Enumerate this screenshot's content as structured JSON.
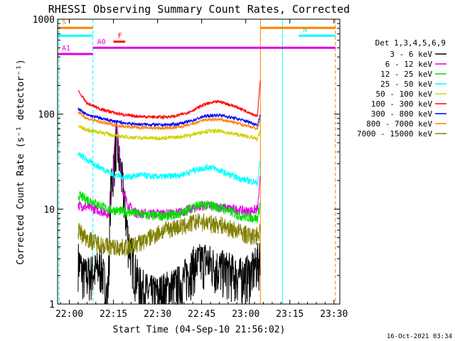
{
  "chart_data": {
    "type": "line",
    "title": "RHESSI Observing Summary Count Rates, Corrected",
    "xlabel": "Start Time (04-Sep-10 21:56:02)",
    "ylabel": "Corrected Count Rate (s⁻¹ detector⁻¹)",
    "y_scale": "log",
    "ylim": [
      1,
      1000
    ],
    "xlim_minutes_after_2156": [
      0,
      96
    ],
    "x_ticks": [
      {
        "label": "22:00",
        "t": 4
      },
      {
        "label": "22:15",
        "t": 19
      },
      {
        "label": "22:30",
        "t": 34
      },
      {
        "label": "22:45",
        "t": 49
      },
      {
        "label": "23:00",
        "t": 64
      },
      {
        "label": "23:15",
        "t": 79
      },
      {
        "label": "23:30",
        "t": 94
      }
    ],
    "y_ticks": [
      {
        "label": "1",
        "v": 1
      },
      {
        "label": "10",
        "v": 10
      },
      {
        "label": "100",
        "v": 100
      },
      {
        "label": "1000",
        "v": 1000
      }
    ],
    "legend_title": "Det 1,3,4,5,6,9",
    "legend_placement": "right",
    "series": [
      {
        "name": "3 - 6 keV",
        "color": "#000000",
        "x": [
          7,
          9,
          12,
          15,
          17,
          17.5,
          18,
          20,
          22,
          24,
          26,
          28,
          30,
          32,
          34,
          38,
          42,
          46,
          50,
          54,
          58,
          62,
          66,
          68.5,
          69
        ],
        "y": [
          3,
          2,
          2.2,
          2.5,
          1.2,
          3,
          15,
          55,
          20,
          5,
          2.5,
          1.6,
          1.4,
          1.3,
          1.3,
          1.5,
          1.7,
          2.6,
          3,
          2.5,
          2.3,
          2,
          2.2,
          3,
          4
        ]
      },
      {
        "name": "6 - 12 keV",
        "color": "#e000e0",
        "x": [
          7,
          10,
          13,
          15,
          17,
          18,
          19,
          20,
          21,
          22,
          24,
          27,
          30,
          35,
          40,
          45,
          50,
          55,
          60,
          65,
          68,
          69
        ],
        "y": [
          11,
          10.5,
          10,
          9.5,
          9,
          10,
          30,
          95,
          35,
          16,
          11,
          9,
          9,
          9,
          9,
          10,
          11,
          10.5,
          10,
          9.5,
          10,
          22
        ]
      },
      {
        "name": "12 - 25 keV",
        "color": "#00e000",
        "x": [
          7,
          12,
          17,
          22,
          27,
          32,
          37,
          42,
          47,
          52,
          57,
          62,
          68,
          69
        ],
        "y": [
          14,
          12,
          10,
          9.5,
          9,
          8.5,
          8.5,
          9,
          11,
          11,
          10,
          8.5,
          8,
          12
        ]
      },
      {
        "name": "25 - 50 keV",
        "color": "#00ffff",
        "x": [
          7,
          10,
          13,
          16,
          19,
          22,
          25,
          28,
          32,
          37,
          42,
          47,
          52,
          57,
          62,
          68,
          69
        ],
        "y": [
          38,
          33,
          29,
          26,
          23,
          22,
          22,
          23,
          22,
          22,
          23,
          26,
          28,
          24,
          21,
          19,
          35
        ]
      },
      {
        "name": "50 - 100 keV",
        "color": "#d0d000",
        "x": [
          7,
          10,
          15,
          20,
          25,
          30,
          35,
          40,
          45,
          50,
          55,
          60,
          65,
          68,
          69
        ],
        "y": [
          75,
          68,
          64,
          59,
          57,
          56,
          56,
          57,
          60,
          66,
          66,
          62,
          58,
          54,
          70
        ]
      },
      {
        "name": "100 - 300 keV",
        "color": "#ff0000",
        "x": [
          7,
          10,
          15,
          20,
          25,
          30,
          35,
          40,
          45,
          50,
          55,
          60,
          65,
          68,
          69
        ],
        "y": [
          175,
          130,
          112,
          102,
          96,
          94,
          93,
          95,
          106,
          127,
          136,
          122,
          105,
          95,
          250
        ]
      },
      {
        "name": "300 - 800 keV",
        "color": "#0000ff",
        "x": [
          7,
          10,
          15,
          20,
          25,
          30,
          35,
          40,
          45,
          50,
          55,
          60,
          65,
          68,
          69
        ],
        "y": [
          115,
          98,
          90,
          83,
          79,
          78,
          77,
          78,
          84,
          95,
          98,
          91,
          83,
          77,
          100
        ]
      },
      {
        "name": "800 - 7000 keV",
        "color": "#ff8000",
        "x": [
          7,
          10,
          15,
          20,
          25,
          30,
          35,
          40,
          45,
          50,
          55,
          60,
          65,
          68,
          69
        ],
        "y": [
          105,
          90,
          82,
          76,
          73,
          72,
          71,
          72,
          77,
          87,
          88,
          82,
          75,
          70,
          90
        ]
      },
      {
        "name": "7000 - 15000 keV",
        "color": "#808000",
        "x": [
          7,
          10,
          13,
          16,
          19,
          22,
          25,
          28,
          31,
          34,
          37,
          40,
          43,
          46,
          49,
          52,
          55,
          58,
          61,
          64,
          66,
          68,
          69
        ],
        "y": [
          6,
          5,
          4.5,
          4.2,
          4,
          4,
          4.1,
          4.5,
          5,
          5.6,
          6.2,
          6.5,
          6.6,
          7.3,
          7.5,
          7.1,
          7,
          6.4,
          6,
          5.5,
          5.2,
          5.4,
          6
        ]
      }
    ],
    "flag_bars": [
      {
        "label": "S",
        "color": "#ff8000",
        "y": 810,
        "segments": [
          [
            0,
            12
          ]
        ]
      },
      {
        "label": "",
        "color": "#00ffff",
        "y": 670,
        "segments": [
          [
            0,
            12
          ]
        ]
      },
      {
        "label": "N",
        "color": "#00ffff",
        "y": 670,
        "segments": [
          [
            82,
            94.5
          ]
        ]
      },
      {
        "label": "",
        "color": "#ff8000",
        "y": 810,
        "segments": [
          [
            69,
            94.5
          ]
        ]
      },
      {
        "label": "F",
        "color": "#ff0000",
        "y": 580,
        "segments": [
          [
            19,
            23
          ]
        ]
      },
      {
        "label": "A0",
        "color": "#e000e0",
        "y": 500,
        "segments": [
          [
            12,
            94.5
          ]
        ]
      },
      {
        "label": "A1",
        "color": "#e000e0",
        "y": 430,
        "segments": [
          [
            0,
            12
          ]
        ]
      }
    ],
    "vertical_markers": [
      {
        "t": 0.5,
        "color": "#00ffff",
        "style": "dashed"
      },
      {
        "t": 12,
        "color": "#00ffff",
        "style": "dashed"
      },
      {
        "t": 69,
        "color": "#ff8000",
        "style": "solid"
      },
      {
        "t": 76.5,
        "color": "#00ffff",
        "style": "solid"
      },
      {
        "t": 94.5,
        "color": "#ff8000",
        "style": "dashed"
      }
    ]
  },
  "footer": {
    "date": "16-Oct-2021 03:34"
  }
}
